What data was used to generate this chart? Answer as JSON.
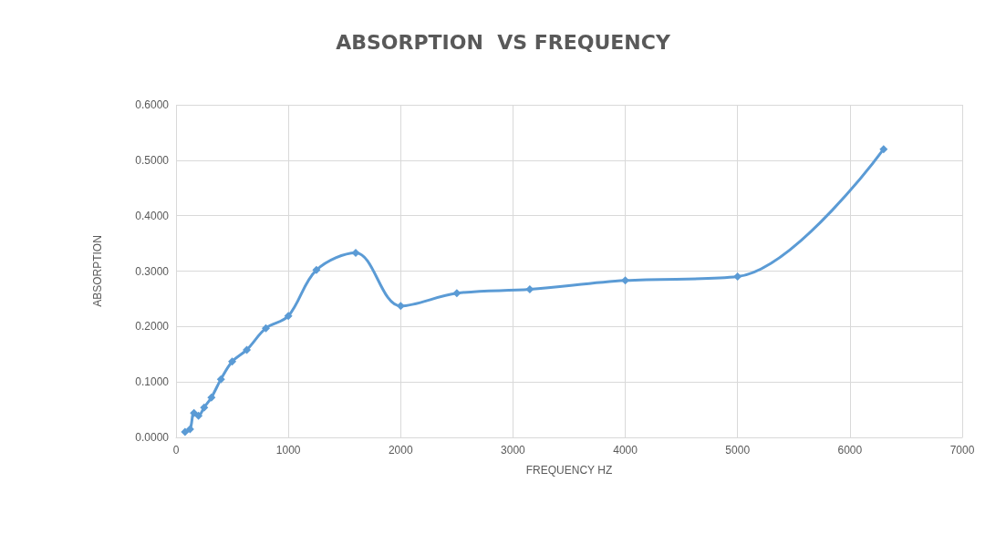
{
  "chart_data": {
    "type": "line",
    "title": "ABSORPTION  VS FREQUENCY",
    "xlabel": "FREQUENCY HZ",
    "ylabel": "ABSORPTION",
    "x": [
      80,
      125,
      160,
      200,
      250,
      315,
      400,
      500,
      630,
      800,
      1000,
      1250,
      1600,
      2000,
      2500,
      3150,
      4000,
      5000,
      6300
    ],
    "series": [
      {
        "color": "#5b9bd5",
        "values": [
          0.01,
          0.015,
          0.044,
          0.039,
          0.054,
          0.072,
          0.105,
          0.137,
          0.158,
          0.197,
          0.219,
          0.302,
          0.333,
          0.237,
          0.26,
          0.267,
          0.283,
          0.29,
          0.52
        ]
      }
    ],
    "xlim": [
      0,
      7000
    ],
    "xticks": [
      0,
      1000,
      2000,
      3000,
      4000,
      5000,
      6000,
      7000
    ],
    "ylim": [
      0,
      0.6
    ],
    "yticks": [
      {
        "value": 0,
        "label": "0.0000"
      },
      {
        "value": 0.1,
        "label": "0.1000"
      },
      {
        "value": 0.2,
        "label": "0.2000"
      },
      {
        "value": 0.3,
        "label": "0.3000"
      },
      {
        "value": 0.4,
        "label": "0.4000"
      },
      {
        "value": 0.5,
        "label": "0.5000"
      },
      {
        "value": 0.6,
        "label": "0.6000"
      }
    ],
    "grid": true,
    "marker": "diamond",
    "line_style": "solid"
  }
}
